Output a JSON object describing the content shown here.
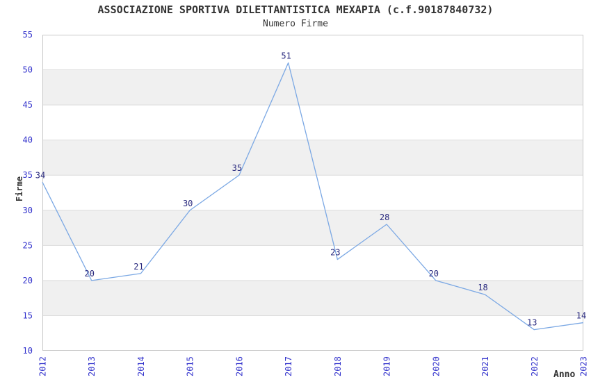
{
  "header": {
    "title": "ASSOCIAZIONE SPORTIVA DILETTANTISTICA MEXAPIA (c.f.90187840732)",
    "subtitle": "Numero Firme"
  },
  "chart_data": {
    "type": "line",
    "title": "ASSOCIAZIONE SPORTIVA DILETTANTISTICA MEXAPIA (c.f.90187840732)",
    "subtitle": "Numero Firme",
    "x": [
      "2012",
      "2013",
      "2014",
      "2015",
      "2016",
      "2017",
      "2018",
      "2019",
      "2020",
      "2021",
      "2022",
      "2023"
    ],
    "series": [
      {
        "name": "Firme",
        "values": [
          34,
          20,
          21,
          30,
          35,
          51,
          23,
          28,
          20,
          18,
          13,
          14
        ]
      }
    ],
    "point_labels_visible": true,
    "xlabel": "Anno",
    "ylabel": "Firme",
    "ylim": [
      10,
      55
    ],
    "ytick_step": 5,
    "grid": "horizontal",
    "legend": "none",
    "shaded_bands": [
      [
        15,
        20
      ],
      [
        25,
        30
      ],
      [
        35,
        40
      ],
      [
        45,
        50
      ]
    ],
    "colors": {
      "line": "#7BA8E4",
      "axis_tick_label": "#3232CC",
      "data_label": "#29297E",
      "band_fill": "#F0F0F0",
      "gridline": "#DCDCDC",
      "plot_border": "#C8C8C8",
      "text": "#333333",
      "background": "#FFFFFF"
    }
  }
}
